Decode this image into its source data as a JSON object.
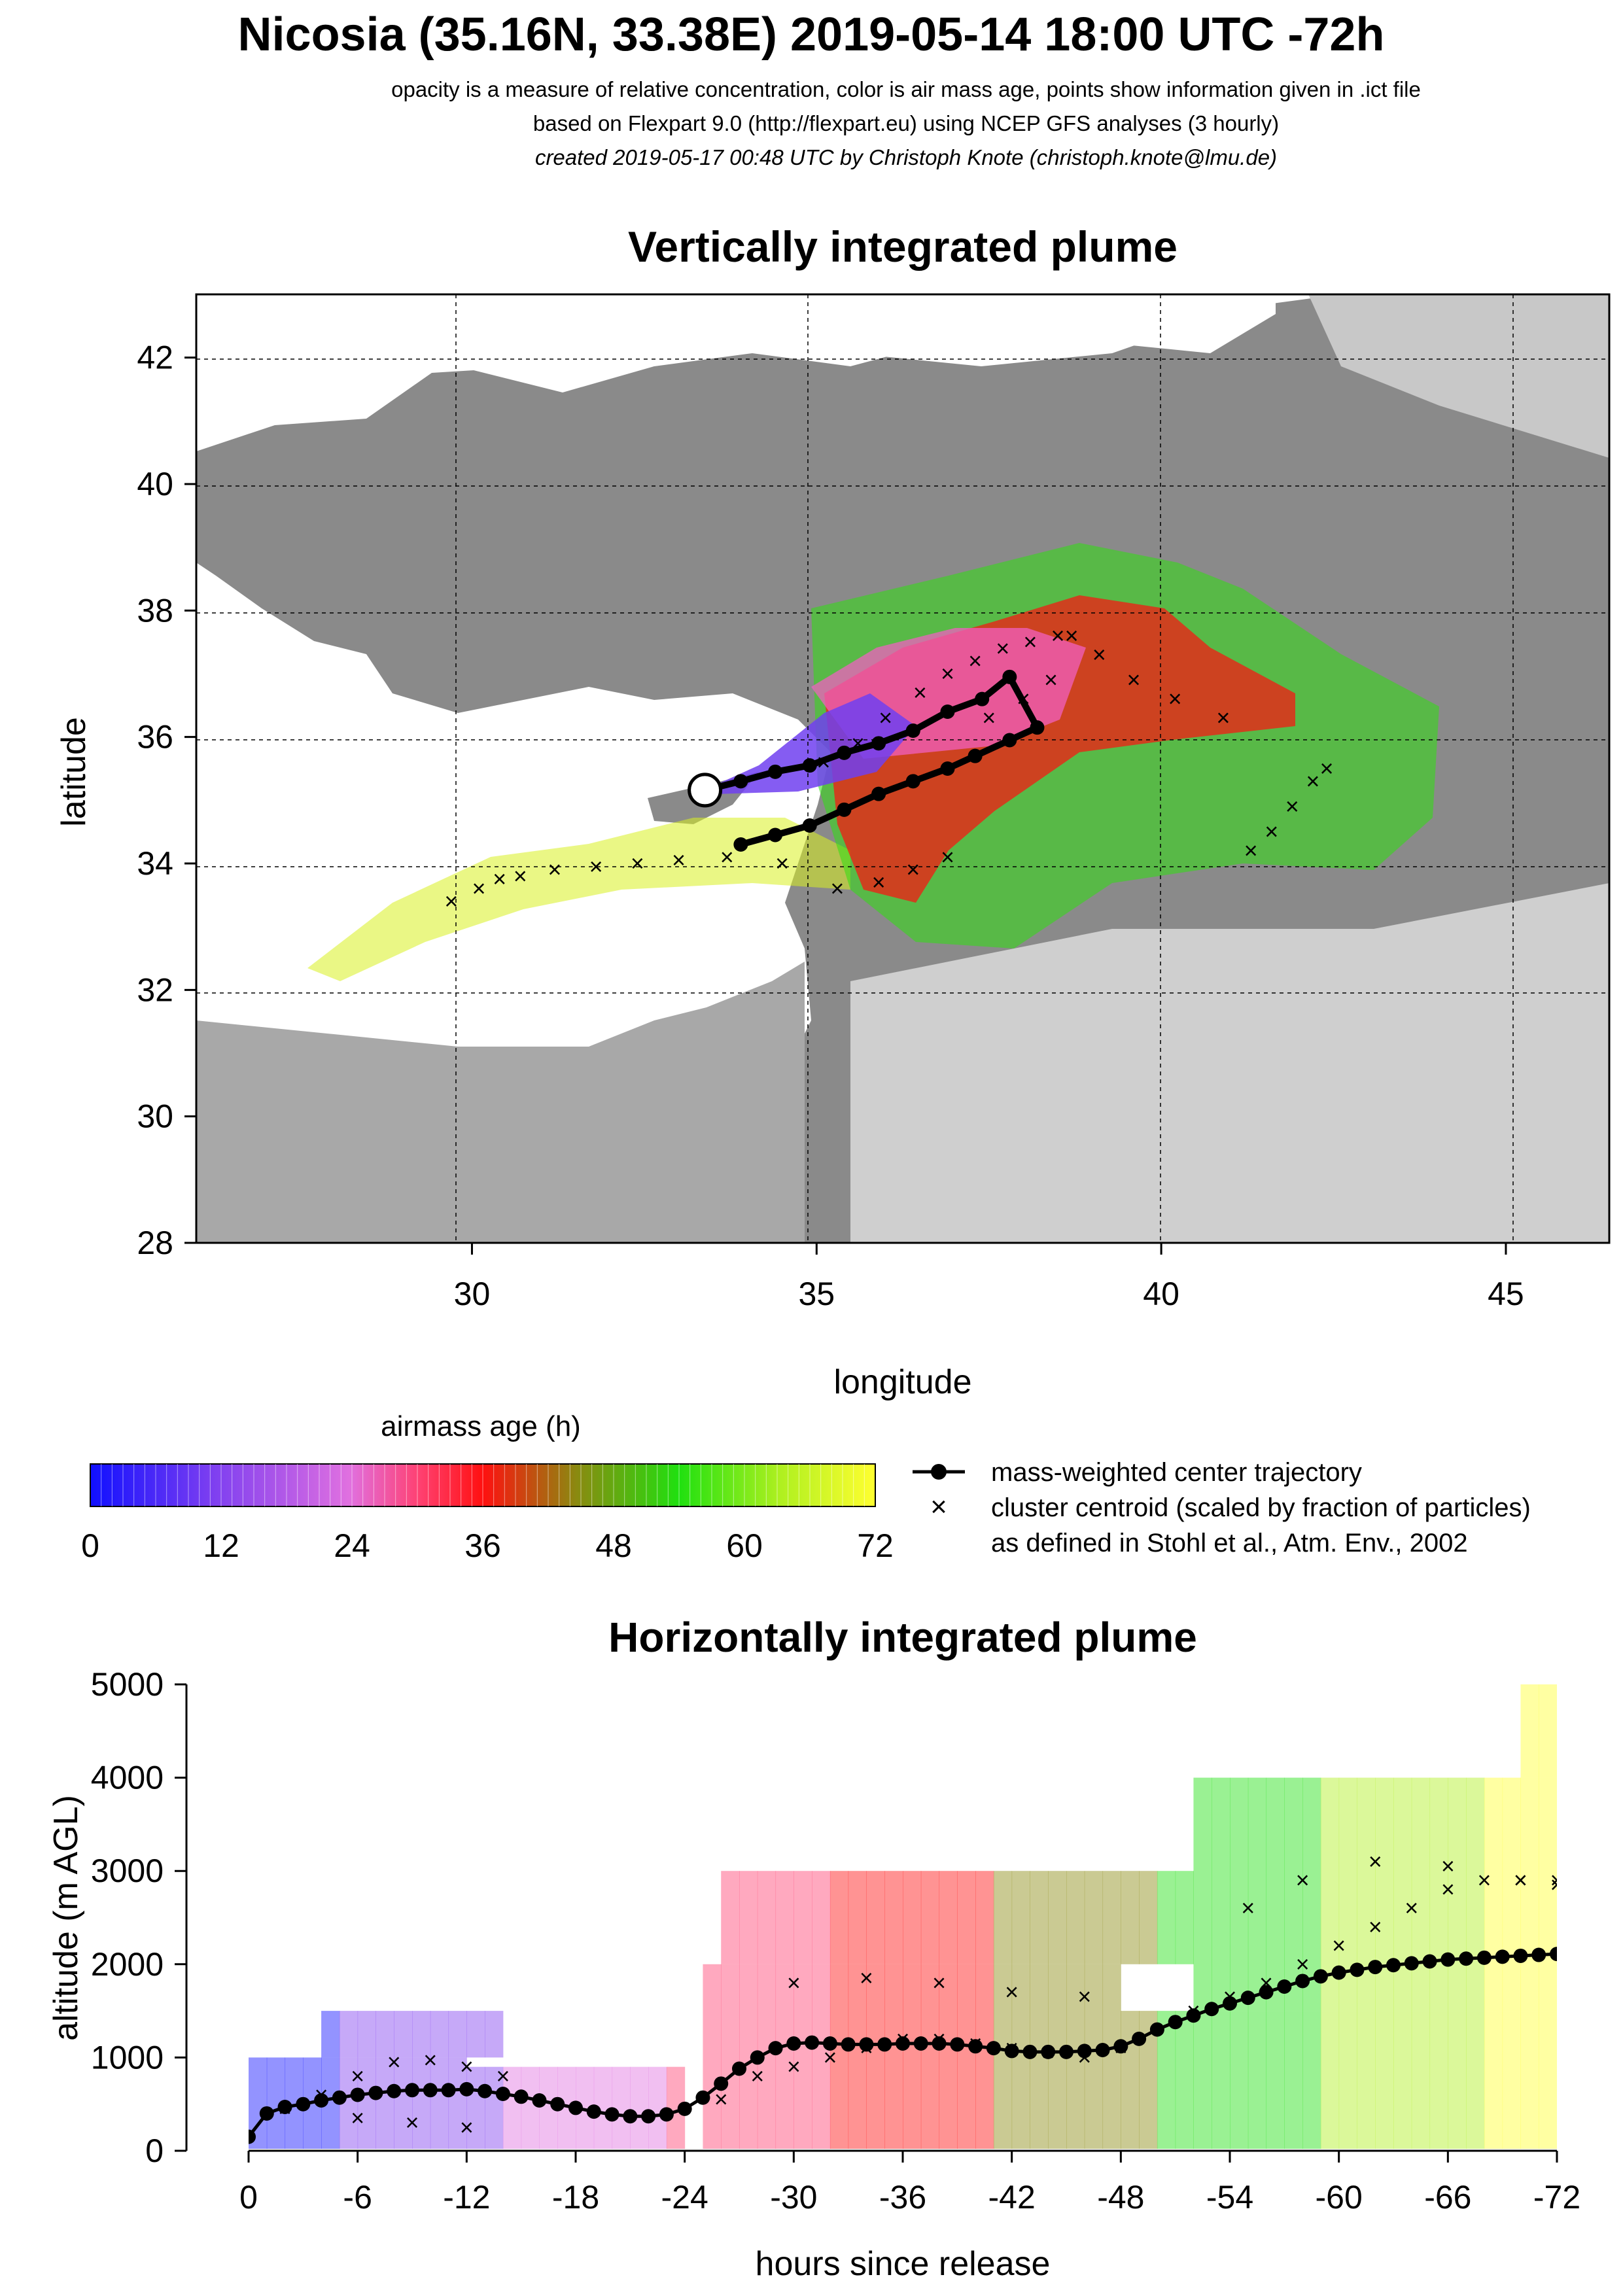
{
  "header": {
    "title": "Nicosia (35.16N, 33.38E) 2019-05-14 18:00 UTC -72h",
    "line1": "opacity is a measure of relative concentration, color is air mass age, points show information given in .ict file",
    "line2": "based on Flexpart 9.0 (http://flexpart.eu) using NCEP GFS analyses (3 hourly)",
    "line3": "created 2019-05-17 00:48 UTC by Christoph Knote (christoph.knote@lmu.de)"
  },
  "colors": {
    "age_scale": [
      "#1010ff",
      "#8040f0",
      "#e070e0",
      "#ff4070",
      "#ff1010",
      "#8a8a10",
      "#20e010",
      "#b0f020",
      "#ffff30"
    ],
    "land": "#888888",
    "sea": "#ffffff"
  },
  "chart_data": [
    {
      "type": "scatter",
      "title": "Vertically integrated plume",
      "xlabel": "longitude",
      "ylabel": "latitude",
      "xlim": [
        26,
        46.5
      ],
      "ylim": [
        28,
        43
      ],
      "xticks": [
        30,
        35,
        40,
        45
      ],
      "yticks": [
        28,
        30,
        32,
        34,
        36,
        38,
        40,
        42
      ],
      "grid": true,
      "release_point": {
        "lon": 33.38,
        "lat": 35.16
      },
      "series": [
        {
          "name": "mass-weighted center trajectory",
          "lon": [
            33.38,
            33.9,
            34.4,
            34.9,
            35.4,
            35.9,
            36.4,
            36.9,
            37.4,
            37.8,
            38.2,
            37.8,
            37.3,
            36.9,
            36.4,
            35.9,
            35.4,
            34.9,
            34.4,
            33.9
          ],
          "lat": [
            35.16,
            35.3,
            35.45,
            35.55,
            35.75,
            35.9,
            36.1,
            36.4,
            36.6,
            36.95,
            36.15,
            35.95,
            35.7,
            35.5,
            35.3,
            35.1,
            34.85,
            34.6,
            34.45,
            34.3
          ]
        },
        {
          "name": "cluster centroid (scaled by fraction of particles)",
          "lon": [
            29.7,
            30.1,
            30.4,
            30.7,
            31.2,
            31.8,
            32.4,
            33.0,
            33.7,
            34.5,
            35.3,
            35.9,
            36.4,
            36.9,
            37.5,
            38.0,
            38.4,
            38.7,
            39.1,
            39.6,
            40.2,
            40.9,
            41.3,
            41.6,
            41.9,
            42.2,
            42.4,
            35.1,
            35.6,
            36.0,
            36.5,
            36.9,
            37.3,
            37.7,
            38.1,
            38.5
          ],
          "lat": [
            33.4,
            33.6,
            33.75,
            33.8,
            33.9,
            33.95,
            34.0,
            34.05,
            34.1,
            34.0,
            33.6,
            33.7,
            33.9,
            34.1,
            36.3,
            36.6,
            36.9,
            37.6,
            37.3,
            36.9,
            36.6,
            36.3,
            34.2,
            34.5,
            34.9,
            35.3,
            35.5,
            35.6,
            35.9,
            36.3,
            36.7,
            37.0,
            37.2,
            37.4,
            37.5,
            37.6
          ]
        }
      ]
    },
    {
      "type": "area",
      "title": "Horizontally integrated plume",
      "xlabel": "hours since release",
      "ylabel": "altitude (m AGL)",
      "xlim": [
        0,
        -72
      ],
      "ylim": [
        0,
        5000
      ],
      "xticks": [
        0,
        -6,
        -12,
        -18,
        -24,
        -30,
        -36,
        -42,
        -48,
        -54,
        -60,
        -66,
        -72
      ],
      "yticks": [
        0,
        1000,
        2000,
        3000,
        4000,
        5000
      ],
      "series": [
        {
          "name": "mass-weighted center trajectory",
          "x": [
            0,
            -1,
            -2,
            -3,
            -4,
            -5,
            -6,
            -7,
            -8,
            -9,
            -10,
            -11,
            -12,
            -13,
            -14,
            -15,
            -16,
            -17,
            -18,
            -19,
            -20,
            -21,
            -22,
            -23,
            -24,
            -25,
            -26,
            -27,
            -28,
            -29,
            -30,
            -31,
            -32,
            -33,
            -34,
            -35,
            -36,
            -37,
            -38,
            -39,
            -40,
            -41,
            -42,
            -43,
            -44,
            -45,
            -46,
            -47,
            -48,
            -49,
            -50,
            -51,
            -52,
            -53,
            -54,
            -55,
            -56,
            -57,
            -58,
            -59,
            -60,
            -61,
            -62,
            -63,
            -64,
            -65,
            -66,
            -67,
            -68,
            -69,
            -70,
            -71,
            -72
          ],
          "y": [
            150,
            400,
            470,
            500,
            540,
            570,
            600,
            620,
            640,
            650,
            650,
            650,
            660,
            640,
            610,
            580,
            540,
            500,
            460,
            420,
            390,
            370,
            370,
            390,
            450,
            570,
            720,
            880,
            1000,
            1100,
            1150,
            1160,
            1150,
            1140,
            1140,
            1140,
            1150,
            1150,
            1150,
            1140,
            1120,
            1100,
            1070,
            1060,
            1060,
            1060,
            1070,
            1080,
            1120,
            1200,
            1300,
            1380,
            1450,
            1520,
            1580,
            1640,
            1700,
            1760,
            1820,
            1870,
            1910,
            1940,
            1970,
            1990,
            2010,
            2030,
            2050,
            2060,
            2070,
            2080,
            2090,
            2100,
            2110
          ]
        },
        {
          "name": "cluster centroid (scaled by fraction of particles)",
          "x": [
            -2,
            -4,
            -6,
            -8,
            -10,
            -12,
            -14,
            -6,
            -9,
            -12,
            -26,
            -28,
            -30,
            -32,
            -34,
            -36,
            -38,
            -40,
            -42,
            -44,
            -46,
            -48,
            -50,
            -52,
            -54,
            -56,
            -58,
            -60,
            -62,
            -64,
            -66,
            -68,
            -70,
            -72,
            -55,
            -58,
            -62,
            -66,
            -70,
            -72,
            -30,
            -34,
            -38,
            -42,
            -46
          ],
          "y": [
            450,
            600,
            800,
            950,
            970,
            900,
            800,
            350,
            300,
            250,
            550,
            800,
            900,
            1000,
            1100,
            1200,
            1200,
            1150,
            1100,
            1050,
            1000,
            1100,
            1300,
            1500,
            1650,
            1800,
            2000,
            2200,
            2400,
            2600,
            2800,
            2900,
            2900,
            2900,
            2600,
            2900,
            3100,
            3050,
            2900,
            2850,
            1800,
            1850,
            1800,
            1700,
            1650
          ]
        }
      ]
    }
  ],
  "map_panel": {
    "title": "Vertically integrated plume",
    "xlabel": "longitude",
    "ylabel": "latitude"
  },
  "profile_panel": {
    "title": "Horizontally integrated plume",
    "xlabel": "hours since release",
    "ylabel": "altitude (m AGL)"
  },
  "colorbar": {
    "title": "airmass age (h)",
    "ticks": [
      "0",
      "12",
      "24",
      "36",
      "48",
      "60",
      "72"
    ]
  },
  "legend": {
    "center": "mass-weighted center trajectory",
    "centroid": "cluster centroid (scaled by fraction of particles)",
    "centroid_note": "as defined in Stohl et al., Atm. Env., 2002"
  }
}
